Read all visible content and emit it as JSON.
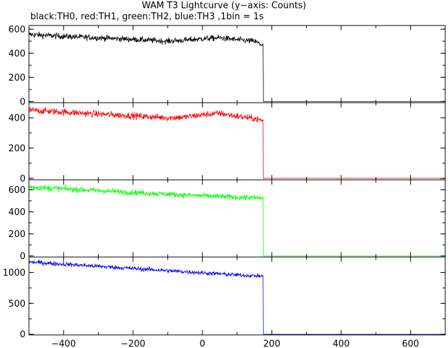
{
  "title": "WAM T3 Lightcurve (y−axis: Counts)",
  "subtitle": "black:TH0, red:TH1, green:TH2, blue:TH3 ,1bin = 1s",
  "chart_data": [
    {
      "type": "line",
      "name": "TH0",
      "color": "#000000",
      "xlim": [
        -500,
        700
      ],
      "ylim": [
        -10,
        630
      ],
      "yticks": [
        0,
        200,
        400,
        600
      ],
      "ytick_labels": [
        "0",
        "200",
        "400",
        "600"
      ],
      "cutoff_x": 176,
      "x": [
        -500,
        -400,
        -300,
        -200,
        -100,
        -50,
        0,
        50,
        100,
        150,
        175,
        176,
        700
      ],
      "y": [
        555,
        540,
        528,
        515,
        500,
        508,
        520,
        528,
        512,
        500,
        465,
        0,
        0
      ]
    },
    {
      "type": "line",
      "name": "TH1",
      "color": "#ff0000",
      "xlim": [
        -500,
        700
      ],
      "ylim": [
        -10,
        500
      ],
      "yticks": [
        0,
        200,
        400
      ],
      "ytick_labels": [
        "0",
        "200",
        "400"
      ],
      "cutoff_x": 176,
      "x": [
        -500,
        -400,
        -300,
        -200,
        -100,
        -50,
        0,
        50,
        100,
        150,
        175,
        176,
        700
      ],
      "y": [
        450,
        438,
        425,
        413,
        400,
        405,
        420,
        430,
        410,
        395,
        380,
        0,
        0
      ]
    },
    {
      "type": "line",
      "name": "TH2",
      "color": "#00ff00",
      "xlim": [
        -500,
        700
      ],
      "ylim": [
        -10,
        690
      ],
      "yticks": [
        0,
        200,
        400,
        600
      ],
      "ytick_labels": [
        "0",
        "200",
        "400",
        "600"
      ],
      "cutoff_x": 176,
      "x": [
        -500,
        -400,
        -300,
        -200,
        -100,
        0,
        100,
        175,
        176,
        700
      ],
      "y": [
        625,
        608,
        592,
        576,
        560,
        545,
        532,
        525,
        0,
        0
      ]
    },
    {
      "type": "line",
      "name": "TH3",
      "color": "#0000ff",
      "xlim": [
        -500,
        700
      ],
      "ylim": [
        -10,
        1250
      ],
      "yticks": [
        0,
        500,
        1000
      ],
      "ytick_labels": [
        "0",
        "500",
        "1000"
      ],
      "cutoff_x": 176,
      "x": [
        -500,
        -400,
        -300,
        -200,
        -100,
        0,
        100,
        175,
        176,
        700
      ],
      "y": [
        1170,
        1135,
        1100,
        1065,
        1030,
        995,
        960,
        940,
        0,
        0
      ]
    }
  ],
  "xticks": [
    -400,
    -200,
    0,
    200,
    400,
    600
  ],
  "xtick_labels": [
    "−400",
    "−200",
    "0",
    "200",
    "400",
    "600"
  ]
}
